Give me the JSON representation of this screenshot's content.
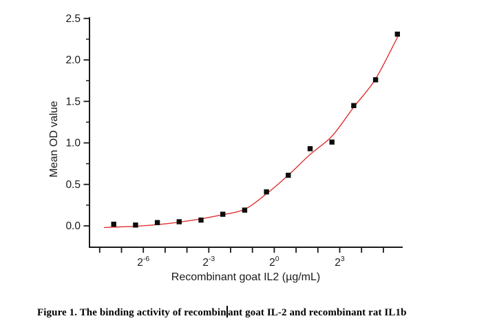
{
  "page": {
    "background": "#ffffff"
  },
  "figure_caption": {
    "full_text": "Figure 1. The binding activity of recombinant goat IL-2 and recombinant rat IL1b",
    "text_before_cursor": "Figure 1. The binding activity of recombin",
    "text_after_cursor": "ant goat IL-2 and recombinant rat IL1b",
    "color": "#000000"
  },
  "chart_data": {
    "type": "scatter",
    "title": "",
    "xlabel": "Recombinant goat IL2 (µg/mL)",
    "ylabel": "Mean OD value",
    "x_scale": "log2",
    "grid": false,
    "legend": "none",
    "axis_color": "#1a1a1a",
    "x_axis": {
      "base_label": "2",
      "labeled_tick_exponents": [
        "-6",
        "-3",
        "0",
        "3"
      ],
      "minor_tick_exponents": [
        -8,
        -7,
        -6,
        -5,
        -4,
        -3,
        -2,
        -1,
        0,
        1,
        2,
        3,
        4,
        5
      ],
      "range_log2": [
        -8.47,
        5.9
      ]
    },
    "y_axis": {
      "major_ticks": [
        0.0,
        0.5,
        1.0,
        1.5,
        2.0,
        2.5
      ],
      "minor_ticks": [
        0.25,
        0.75,
        1.25,
        1.75,
        2.25
      ],
      "range": [
        -0.27,
        2.5
      ]
    },
    "series": [
      {
        "name": "Mean OD value",
        "marker": "filled-square",
        "marker_color": "#0d0d0d",
        "x": [
          0.006104,
          0.012207,
          0.024414,
          0.048828,
          0.097656,
          0.195313,
          0.390625,
          0.78125,
          1.5625,
          3.125,
          6.25,
          12.5,
          25,
          50
        ],
        "y": [
          0.02,
          0.01,
          0.04,
          0.05,
          0.07,
          0.14,
          0.19,
          0.41,
          0.61,
          0.93,
          1.01,
          1.45,
          1.76,
          2.31
        ]
      }
    ],
    "fit_curve": {
      "name": "fitted-curve",
      "color": "#e03131",
      "log2_x": [
        -7.8,
        -7.36,
        -6.36,
        -5.36,
        -4.36,
        -3.36,
        -2.36,
        -1.36,
        -0.36,
        0.64,
        1.64,
        2.64,
        3.64,
        4.64,
        5.66
      ],
      "y": [
        -0.02,
        -0.015,
        -0.005,
        0.015,
        0.045,
        0.085,
        0.135,
        0.2,
        0.385,
        0.61,
        0.86,
        1.08,
        1.43,
        1.77,
        2.28
      ]
    }
  }
}
